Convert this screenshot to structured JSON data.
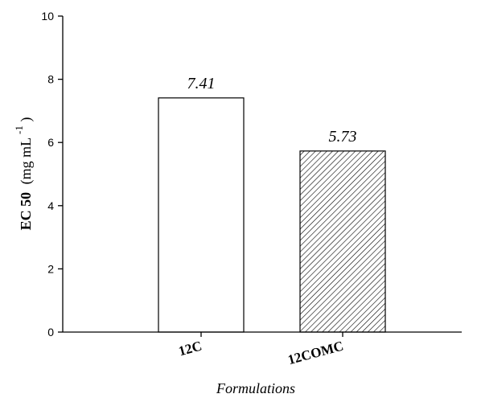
{
  "chart_data": {
    "type": "bar",
    "categories": [
      "12C",
      "12COMC"
    ],
    "values": [
      7.41,
      5.73
    ],
    "data_labels": [
      "7.41",
      "5.73"
    ],
    "bar_styles": [
      "plain",
      "hatched"
    ],
    "xlabel": "Formulations",
    "ylabel": {
      "bold": "EC 50",
      "unit": "(mg mL",
      "exponent": "-1",
      "close": ")"
    },
    "ylim": [
      0,
      10
    ],
    "yticks": [
      "0",
      "2",
      "4",
      "6",
      "8",
      "10"
    ],
    "grid": false,
    "colors": {
      "axis": "#000000",
      "bar_fill": "#ffffff",
      "bar_stroke": "#000000",
      "hatch": "#000000"
    }
  }
}
